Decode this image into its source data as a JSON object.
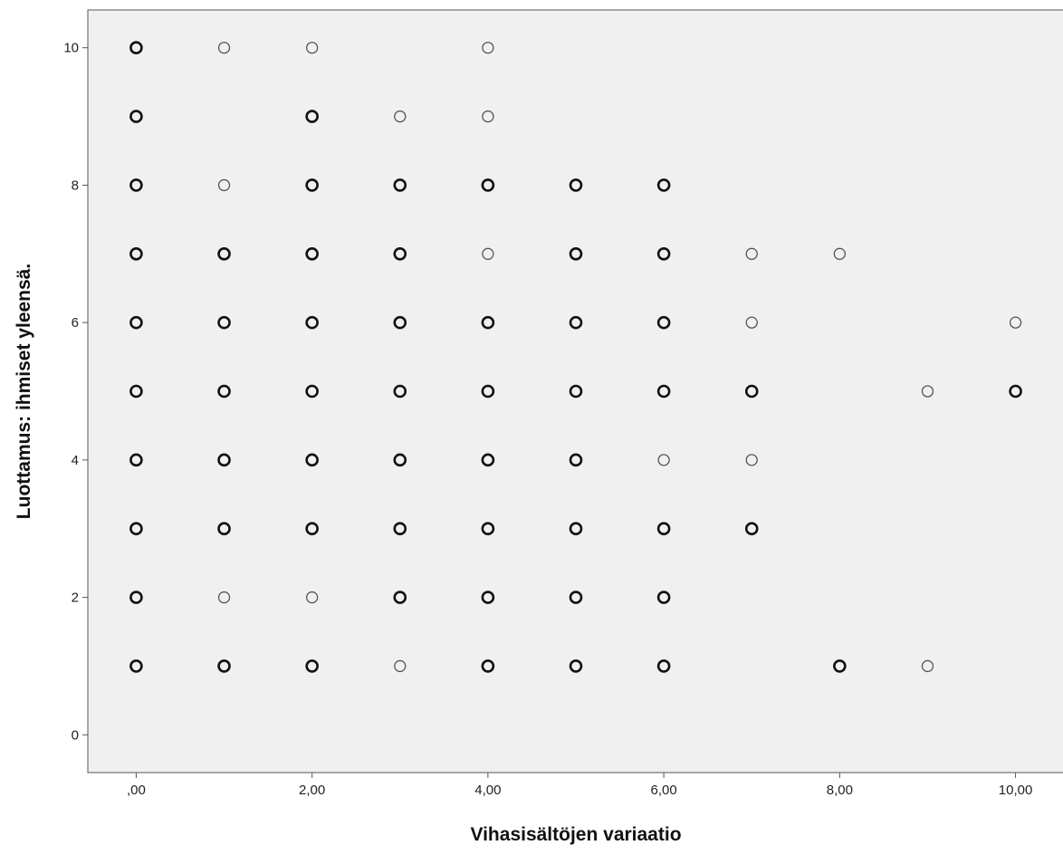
{
  "chart_data": {
    "type": "scatter",
    "title": "",
    "xlabel": "Vihasisältöjen variaatio",
    "ylabel": "Luottamus: ihmiset yleensä.",
    "xlim": [
      -0.55,
      10.55
    ],
    "ylim": [
      -0.55,
      10.55
    ],
    "xticks": [
      0,
      2,
      4,
      6,
      8,
      10
    ],
    "xtick_labels": [
      ",00",
      "2,00",
      "4,00",
      "6,00",
      "8,00",
      "10,00"
    ],
    "yticks": [
      0,
      2,
      4,
      6,
      8,
      10
    ],
    "ytick_labels": [
      "0",
      "2",
      "4",
      "6",
      "8",
      "10"
    ],
    "grid": false,
    "legend": "none",
    "background_color": "#f0f0f0",
    "marker": "open-circle",
    "marker_note": "darker, bolder rings mark overlapping (repeated) observations",
    "points": [
      {
        "x": 0,
        "y": 10,
        "bold": true
      },
      {
        "x": 1,
        "y": 10,
        "bold": false
      },
      {
        "x": 2,
        "y": 10,
        "bold": false
      },
      {
        "x": 4,
        "y": 10,
        "bold": false
      },
      {
        "x": 0,
        "y": 9,
        "bold": true
      },
      {
        "x": 2,
        "y": 9,
        "bold": true
      },
      {
        "x": 3,
        "y": 9,
        "bold": false
      },
      {
        "x": 4,
        "y": 9,
        "bold": false
      },
      {
        "x": 0,
        "y": 8,
        "bold": true
      },
      {
        "x": 1,
        "y": 8,
        "bold": false
      },
      {
        "x": 2,
        "y": 8,
        "bold": true
      },
      {
        "x": 3,
        "y": 8,
        "bold": true
      },
      {
        "x": 4,
        "y": 8,
        "bold": true
      },
      {
        "x": 5,
        "y": 8,
        "bold": true
      },
      {
        "x": 6,
        "y": 8,
        "bold": true
      },
      {
        "x": 0,
        "y": 7,
        "bold": true
      },
      {
        "x": 1,
        "y": 7,
        "bold": true
      },
      {
        "x": 2,
        "y": 7,
        "bold": true
      },
      {
        "x": 3,
        "y": 7,
        "bold": true
      },
      {
        "x": 4,
        "y": 7,
        "bold": false
      },
      {
        "x": 5,
        "y": 7,
        "bold": true
      },
      {
        "x": 6,
        "y": 7,
        "bold": true
      },
      {
        "x": 7,
        "y": 7,
        "bold": false
      },
      {
        "x": 8,
        "y": 7,
        "bold": false
      },
      {
        "x": 0,
        "y": 6,
        "bold": true
      },
      {
        "x": 1,
        "y": 6,
        "bold": true
      },
      {
        "x": 2,
        "y": 6,
        "bold": true
      },
      {
        "x": 3,
        "y": 6,
        "bold": true
      },
      {
        "x": 4,
        "y": 6,
        "bold": true
      },
      {
        "x": 5,
        "y": 6,
        "bold": true
      },
      {
        "x": 6,
        "y": 6,
        "bold": true
      },
      {
        "x": 7,
        "y": 6,
        "bold": false
      },
      {
        "x": 10,
        "y": 6,
        "bold": false
      },
      {
        "x": 0,
        "y": 5,
        "bold": true
      },
      {
        "x": 1,
        "y": 5,
        "bold": true
      },
      {
        "x": 2,
        "y": 5,
        "bold": true
      },
      {
        "x": 3,
        "y": 5,
        "bold": true
      },
      {
        "x": 4,
        "y": 5,
        "bold": true
      },
      {
        "x": 5,
        "y": 5,
        "bold": true
      },
      {
        "x": 6,
        "y": 5,
        "bold": true
      },
      {
        "x": 7,
        "y": 5,
        "bold": true
      },
      {
        "x": 9,
        "y": 5,
        "bold": false
      },
      {
        "x": 10,
        "y": 5,
        "bold": true
      },
      {
        "x": 0,
        "y": 4,
        "bold": true
      },
      {
        "x": 1,
        "y": 4,
        "bold": true
      },
      {
        "x": 2,
        "y": 4,
        "bold": true
      },
      {
        "x": 3,
        "y": 4,
        "bold": true
      },
      {
        "x": 4,
        "y": 4,
        "bold": true
      },
      {
        "x": 5,
        "y": 4,
        "bold": true
      },
      {
        "x": 6,
        "y": 4,
        "bold": false
      },
      {
        "x": 7,
        "y": 4,
        "bold": false
      },
      {
        "x": 0,
        "y": 3,
        "bold": true
      },
      {
        "x": 1,
        "y": 3,
        "bold": true
      },
      {
        "x": 2,
        "y": 3,
        "bold": true
      },
      {
        "x": 3,
        "y": 3,
        "bold": true
      },
      {
        "x": 4,
        "y": 3,
        "bold": true
      },
      {
        "x": 5,
        "y": 3,
        "bold": true
      },
      {
        "x": 6,
        "y": 3,
        "bold": true
      },
      {
        "x": 7,
        "y": 3,
        "bold": true
      },
      {
        "x": 0,
        "y": 2,
        "bold": true
      },
      {
        "x": 1,
        "y": 2,
        "bold": false
      },
      {
        "x": 2,
        "y": 2,
        "bold": false
      },
      {
        "x": 3,
        "y": 2,
        "bold": true
      },
      {
        "x": 4,
        "y": 2,
        "bold": true
      },
      {
        "x": 5,
        "y": 2,
        "bold": true
      },
      {
        "x": 6,
        "y": 2,
        "bold": true
      },
      {
        "x": 0,
        "y": 1,
        "bold": true
      },
      {
        "x": 1,
        "y": 1,
        "bold": true
      },
      {
        "x": 2,
        "y": 1,
        "bold": true
      },
      {
        "x": 3,
        "y": 1,
        "bold": false
      },
      {
        "x": 4,
        "y": 1,
        "bold": true
      },
      {
        "x": 5,
        "y": 1,
        "bold": true
      },
      {
        "x": 6,
        "y": 1,
        "bold": true
      },
      {
        "x": 8,
        "y": 1,
        "bold": true
      },
      {
        "x": 9,
        "y": 1,
        "bold": false
      }
    ]
  }
}
